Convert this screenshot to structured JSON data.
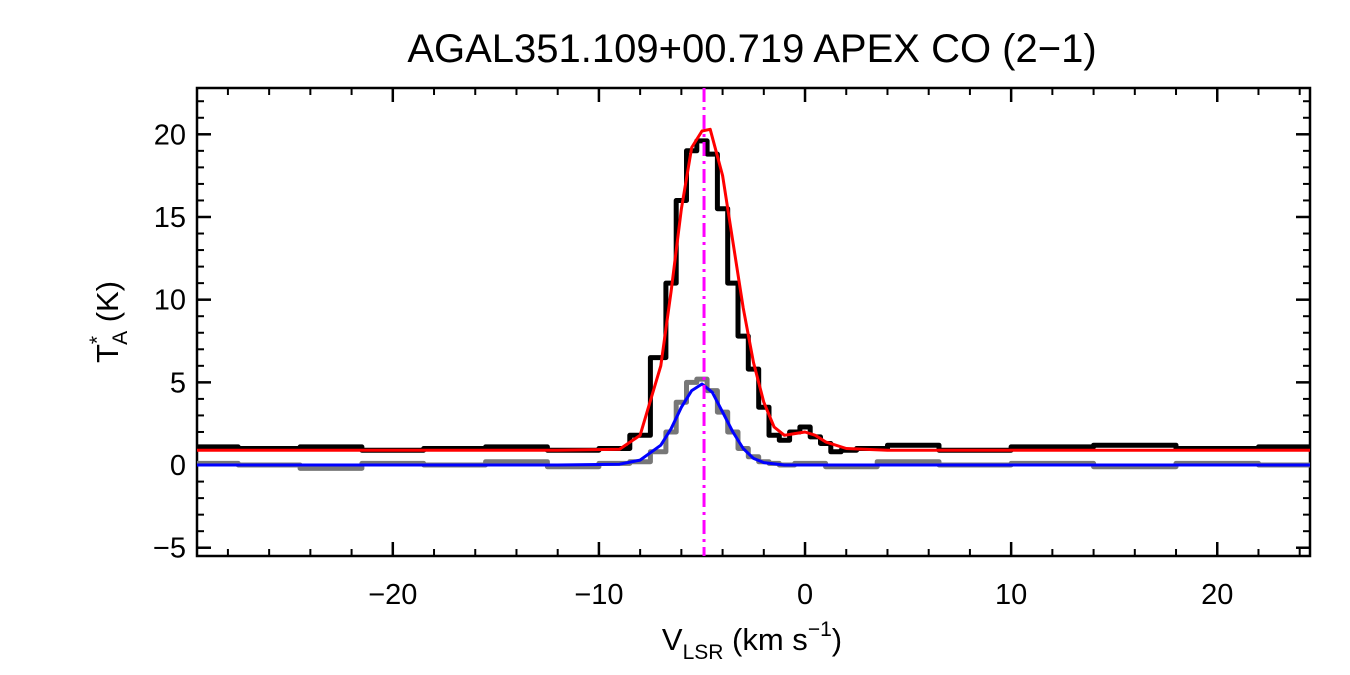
{
  "chart_data": {
    "type": "line",
    "title": "AGAL351.109+00.719  APEX CO (2−1)",
    "xlabel": {
      "main": "V",
      "sub": "LSR",
      "rest": " (km s",
      "sup": "−1",
      "close": ")"
    },
    "ylabel": {
      "main": "T",
      "sup": "*",
      "sub": "A",
      "rest": " (K)"
    },
    "xlim": [
      -29.5,
      24.5
    ],
    "ylim": [
      -5.5,
      22.8
    ],
    "xticks": [
      -20,
      -10,
      0,
      10,
      20
    ],
    "xtick_labels": [
      "−20",
      "−10",
      "0",
      "10",
      "20"
    ],
    "yticks": [
      -5,
      0,
      5,
      10,
      15,
      20
    ],
    "ytick_labels": [
      "−5",
      "0",
      "5",
      "10",
      "15",
      "20"
    ],
    "reference_line": {
      "x": -4.9,
      "color": "#ff00ff",
      "style": "dash-dot"
    },
    "series": [
      {
        "kind": "histogram",
        "color": "#000000",
        "x": [
          -29,
          -26,
          -23,
          -20,
          -17,
          -14,
          -11,
          -9,
          -8,
          -7,
          -6.5,
          -6,
          -5.5,
          -5,
          -4.5,
          -4,
          -3.5,
          -3,
          -2.5,
          -2,
          -1.5,
          -1,
          -0.5,
          0,
          0.5,
          1,
          1.5,
          2,
          3,
          5,
          8,
          12,
          16,
          20,
          24
        ],
        "y": [
          1.1,
          1.0,
          1.1,
          0.9,
          1.0,
          1.1,
          0.9,
          1.0,
          1.8,
          6.5,
          11.0,
          16.0,
          19.0,
          19.6,
          18.8,
          15.5,
          11.0,
          7.8,
          5.8,
          3.5,
          1.8,
          1.5,
          2.0,
          2.3,
          1.7,
          1.3,
          0.8,
          0.9,
          1.0,
          1.2,
          0.9,
          1.1,
          1.2,
          1.0,
          1.1
        ]
      },
      {
        "kind": "histogram",
        "color": "#777777",
        "x": [
          -29,
          -26,
          -23,
          -20,
          -17,
          -14,
          -11,
          -9,
          -8,
          -7,
          -6.5,
          -6,
          -5.5,
          -5,
          -4.5,
          -4,
          -3.5,
          -3,
          -2.5,
          -2,
          -1.5,
          -1,
          0,
          2,
          5,
          8,
          12,
          16,
          20,
          24
        ],
        "y": [
          0.1,
          0.0,
          -0.2,
          0.1,
          0.0,
          0.2,
          -0.1,
          0.1,
          0.2,
          0.8,
          2.0,
          3.8,
          5.0,
          5.2,
          4.5,
          3.2,
          2.0,
          1.0,
          0.5,
          0.2,
          0.1,
          0.0,
          0.1,
          -0.1,
          0.2,
          0.0,
          0.1,
          -0.1,
          0.1,
          0.0
        ]
      },
      {
        "kind": "fit",
        "color": "#ff0000",
        "x": [
          -29.5,
          -20,
          -12,
          -9,
          -8,
          -7,
          -6.5,
          -6,
          -5.5,
          -5,
          -4.6,
          -4,
          -3.5,
          -3,
          -2.5,
          -2,
          -1.5,
          -1,
          -0.5,
          0,
          0.5,
          1,
          2,
          4,
          10,
          20,
          24.5
        ],
        "y": [
          0.9,
          0.9,
          0.9,
          0.95,
          1.8,
          6.0,
          10.5,
          15.5,
          19.2,
          20.2,
          20.3,
          17.5,
          13.5,
          9.5,
          6.2,
          3.8,
          2.3,
          1.8,
          1.9,
          2.0,
          1.8,
          1.4,
          1.0,
          0.9,
          0.9,
          0.9,
          0.9
        ]
      },
      {
        "kind": "fit",
        "color": "#0000ff",
        "x": [
          -29.5,
          -12,
          -9,
          -8,
          -7,
          -6.5,
          -6,
          -5.5,
          -5,
          -4.5,
          -4,
          -3.5,
          -3,
          -2.5,
          -2,
          -1,
          0,
          24.5
        ],
        "y": [
          0.0,
          0.0,
          0.05,
          0.3,
          1.2,
          2.2,
          3.5,
          4.5,
          4.9,
          4.4,
          3.2,
          2.0,
          1.0,
          0.4,
          0.15,
          0.0,
          0.0,
          0.0
        ]
      }
    ]
  }
}
